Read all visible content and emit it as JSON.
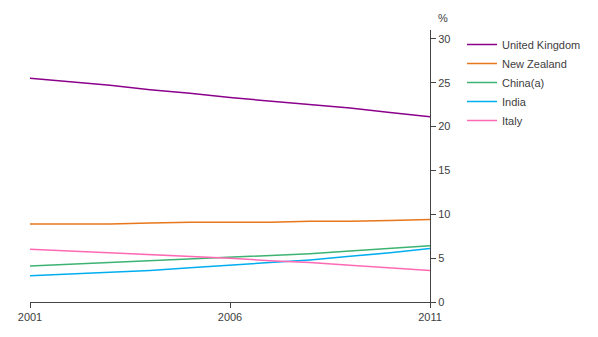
{
  "chart_data": {
    "type": "line",
    "x": [
      2001,
      2002,
      2003,
      2004,
      2005,
      2006,
      2007,
      2008,
      2009,
      2010,
      2011
    ],
    "series": [
      {
        "name": "United Kingdom",
        "color": "#8B008B",
        "values": [
          25.5,
          25.1,
          24.7,
          24.2,
          23.8,
          23.3,
          22.9,
          22.5,
          22.1,
          21.6,
          21.1
        ]
      },
      {
        "name": "New Zealand",
        "color": "#E8761A",
        "values": [
          8.9,
          8.9,
          8.9,
          9.0,
          9.1,
          9.1,
          9.1,
          9.2,
          9.2,
          9.3,
          9.4
        ]
      },
      {
        "name": "China(a)",
        "color": "#3CB371",
        "values": [
          4.1,
          4.3,
          4.5,
          4.7,
          4.9,
          5.1,
          5.3,
          5.5,
          5.8,
          6.1,
          6.4
        ]
      },
      {
        "name": "India",
        "color": "#00AEEF",
        "values": [
          3.0,
          3.2,
          3.4,
          3.6,
          3.9,
          4.2,
          4.5,
          4.8,
          5.2,
          5.6,
          6.1
        ]
      },
      {
        "name": "Italy",
        "color": "#FF69B4",
        "values": [
          6.0,
          5.8,
          5.6,
          5.4,
          5.2,
          5.0,
          4.7,
          4.5,
          4.2,
          3.9,
          3.6
        ]
      }
    ],
    "ylabel": "%",
    "xlim": [
      2001,
      2011
    ],
    "xticks": [
      2001,
      2006,
      2011
    ],
    "ylim": [
      0,
      31
    ],
    "yticks": [
      0,
      5,
      10,
      15,
      20,
      25,
      30
    ],
    "grid": false,
    "legend": "upper right"
  }
}
